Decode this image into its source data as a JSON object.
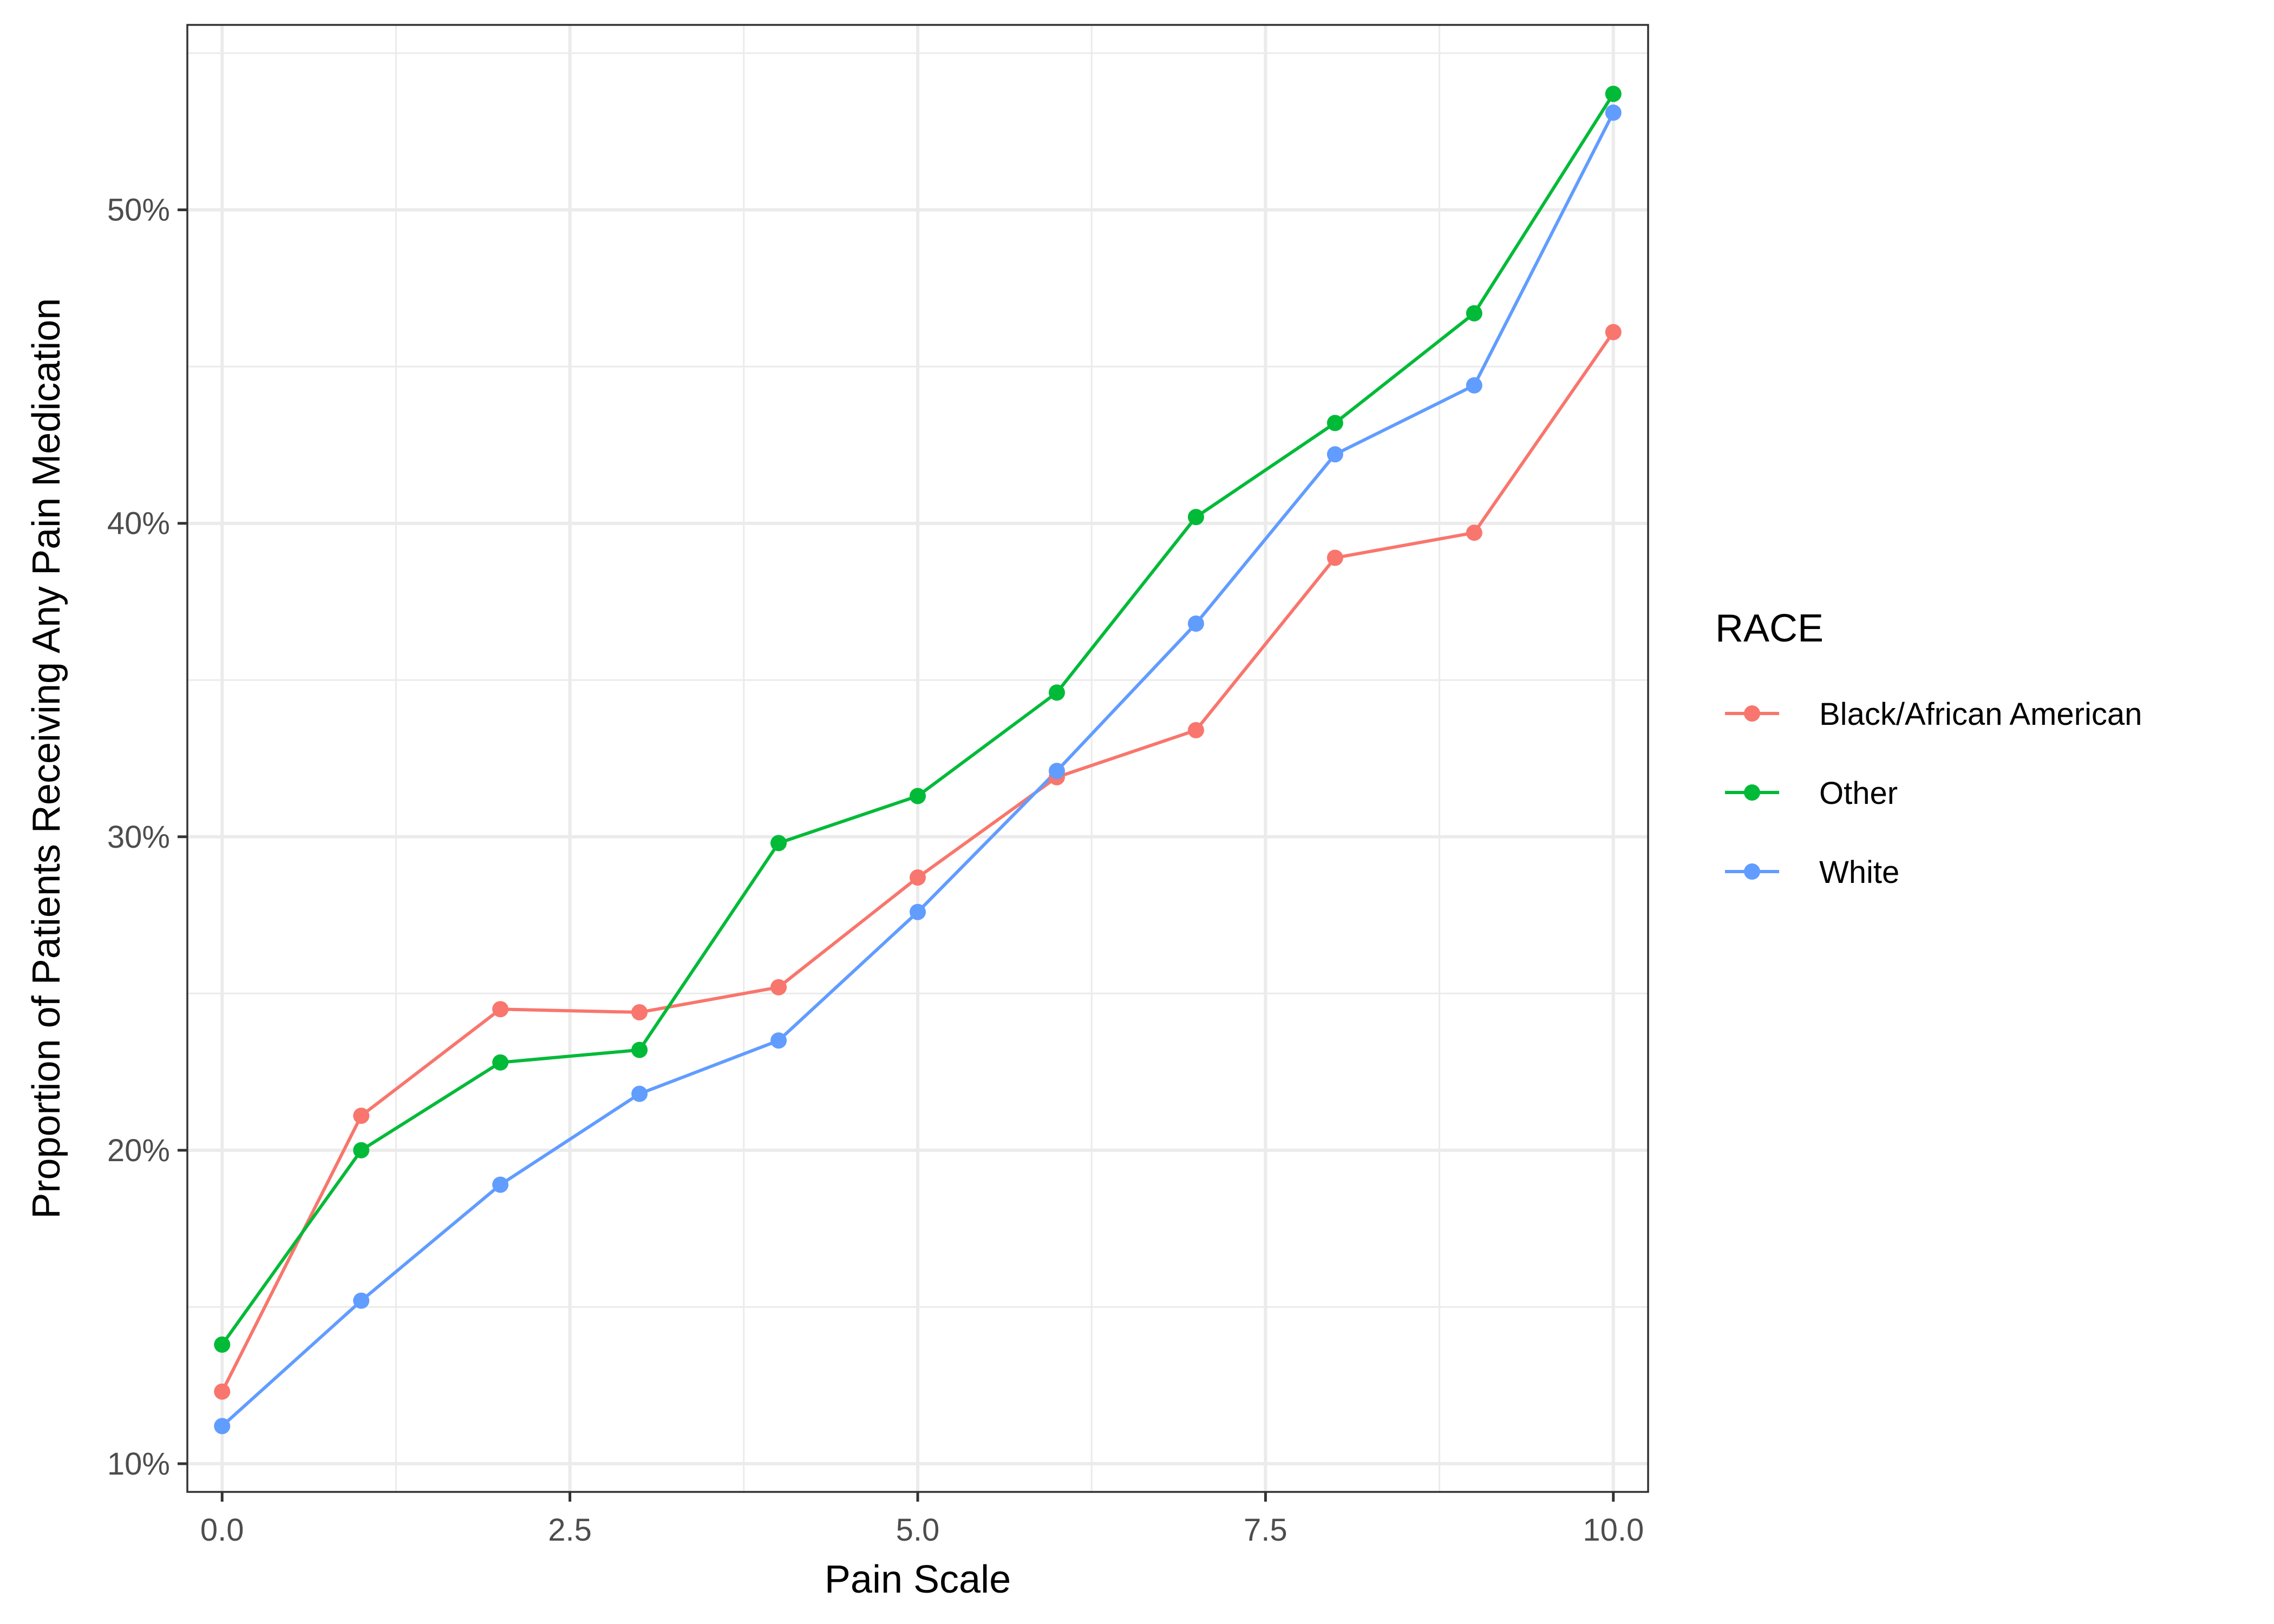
{
  "chart_data": {
    "type": "line",
    "xlabel": "Pain Scale",
    "ylabel": "Proportion of Patients Receiving Any Pain Medication",
    "x": [
      0,
      1,
      2,
      3,
      4,
      5,
      6,
      7,
      8,
      9,
      10
    ],
    "xlim": [
      -0.25,
      10.25
    ],
    "ylim": [
      0.091,
      0.559
    ],
    "x_ticks": [
      {
        "value": 0,
        "label": "0.0"
      },
      {
        "value": 2.5,
        "label": "2.5"
      },
      {
        "value": 5,
        "label": "5.0"
      },
      {
        "value": 7.5,
        "label": "7.5"
      },
      {
        "value": 10,
        "label": "10.0"
      }
    ],
    "y_ticks": [
      {
        "value": 0.1,
        "label": "10%"
      },
      {
        "value": 0.2,
        "label": "20%"
      },
      {
        "value": 0.3,
        "label": "30%"
      },
      {
        "value": 0.4,
        "label": "40%"
      },
      {
        "value": 0.5,
        "label": "50%"
      }
    ],
    "grid": true,
    "legend": {
      "title": "RACE",
      "placement": "right"
    },
    "series": [
      {
        "name": "Black/African American",
        "color": "#F8766D",
        "values": [
          0.123,
          0.211,
          0.245,
          0.244,
          0.252,
          0.287,
          0.319,
          0.334,
          0.389,
          0.397,
          0.461
        ]
      },
      {
        "name": "Other",
        "color": "#00BA38",
        "values": [
          0.138,
          0.2,
          0.228,
          0.232,
          0.298,
          0.313,
          0.346,
          0.402,
          0.432,
          0.467,
          0.537
        ]
      },
      {
        "name": "White",
        "color": "#619CFF",
        "values": [
          0.112,
          0.152,
          0.189,
          0.218,
          0.235,
          0.276,
          0.321,
          0.368,
          0.422,
          0.444,
          0.531
        ]
      }
    ]
  }
}
